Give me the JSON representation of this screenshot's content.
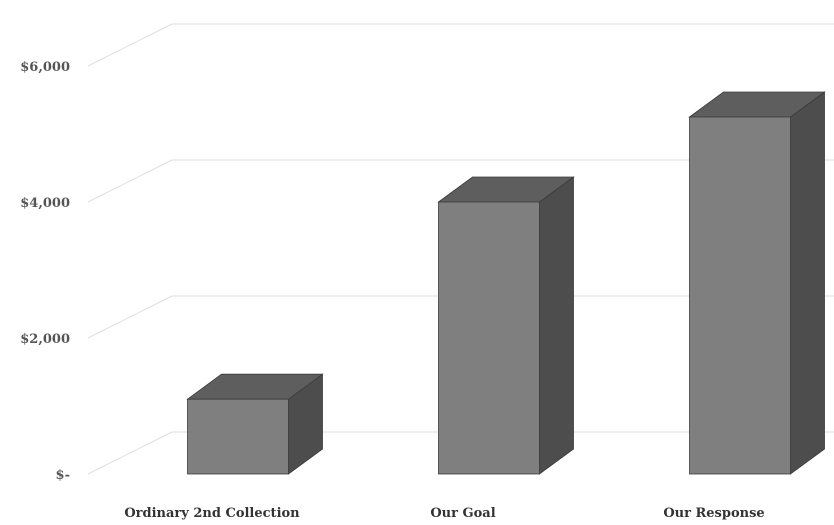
{
  "chart_data": {
    "type": "bar",
    "title": "",
    "xlabel": "",
    "ylabel": "",
    "categories": [
      "Ordinary 2nd Collection",
      "Our Goal",
      "Our Response"
    ],
    "values": [
      1100,
      4000,
      5250
    ],
    "ylim": [
      0,
      7000
    ],
    "y_ticks": [
      {
        "value": 0,
        "label": "$-"
      },
      {
        "value": 2000,
        "label": "$2,000"
      },
      {
        "value": 4000,
        "label": "$4,000"
      },
      {
        "value": 6000,
        "label": "$6,000"
      }
    ],
    "grid": true,
    "legend": "none",
    "style": "3d",
    "colors": {
      "front": "#7f7f7f",
      "top": "#5e5e5e",
      "side": "#4d4d4d",
      "edge": "#3c3c3c",
      "grid": "#dedede"
    }
  }
}
